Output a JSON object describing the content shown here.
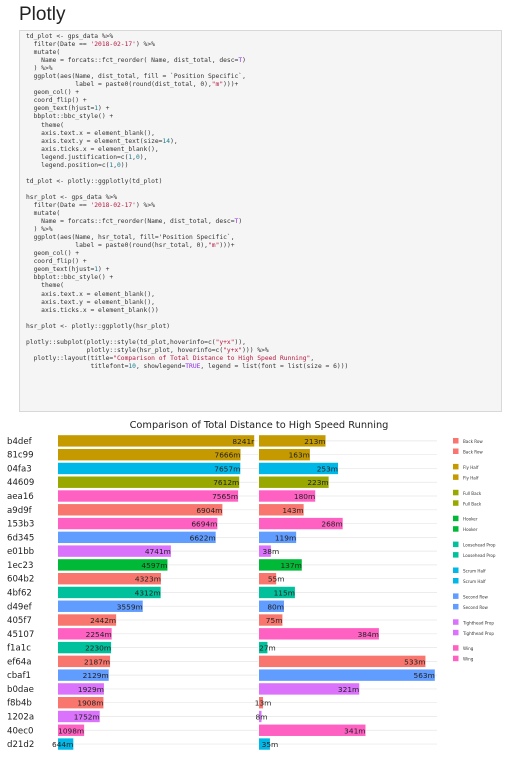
{
  "page": {
    "heading": "Plotly"
  },
  "code": {
    "lines": [
      "td_plot <- gps_data %>%",
      "  filter(Date == '2018-02-17') %>%",
      "  mutate(",
      "    Name = forcats::fct_reorder( Name, dist_total, desc=T)",
      "  ) %>%",
      "  ggplot(aes(Name, dist_total, fill = `Position Specific`,",
      "             label = paste0(round(dist_total, 0),\"m\")))+",
      "  geom_col() +",
      "  coord_flip() +",
      "  geom_text(hjust=1) +",
      "  bbplot::bbc_style() +",
      "    theme(",
      "    axis.text.x = element_blank(),",
      "    axis.text.y = element_text(size=14),",
      "    axis.ticks.x = element_blank(),",
      "    legend.justification=c(1,0),",
      "    legend.position=c(1,0))",
      "",
      "td_plot <- plotly::ggplotly(td_plot)",
      "",
      "hsr_plot <- gps_data %>%",
      "  filter(Date == '2018-02-17') %>%",
      "  mutate(",
      "    Name = forcats::fct_reorder(Name, dist_total, desc=T)",
      "  ) %>%",
      "  ggplot(aes(Name, hsr_total, fill='Position Specific`,",
      "             label = paste0(round(hsr_total, 0),\"m\")))+",
      "  geom_col() +",
      "  coord_flip() +",
      "  geom_text(hjust=1) +",
      "  bbplot::bbc_style() +",
      "    theme(",
      "    axis.text.x = element_blank(),",
      "    axis.text.y = element_blank(),",
      "    axis.ticks.x = element_blank())",
      "",
      "hsr_plot <- plotly::ggplotly(hsr_plot)",
      "",
      "plotly::subplot(plotly::style(td_plot,hoverinfo=c(\"y+x\")),",
      "                plotly::style(hsr_plot, hoverinfo=c(\"y+x\"))) %>%",
      "  plotly::layout(title=\"Comparison of Total Distance to High Speed Running\",",
      "                 titlefont=10, showlegend=TRUE, legend = list(font = list(size = 6)))"
    ]
  },
  "chart_data": {
    "type": "bar",
    "title": "Comparison of Total Distance to High Speed Running",
    "colors": {
      "Back Row": "#f8766d",
      "Fly Half": "#c49a00",
      "Full Back": "#99a800",
      "Hooker": "#00b936",
      "Loosehead Prop": "#00c19c",
      "Scrum Half": "#00b8e7",
      "Second Row": "#619cff",
      "Tighthead Prop": "#db72fb",
      "Wing": "#ff61c3"
    },
    "legend_entries": [
      "Back Row",
      "Back Row",
      "Fly Half",
      "Fly Half",
      "Full Back",
      "Full Back",
      "Hooker",
      "Hooker",
      "Loosehead Prop",
      "Loosehead Prop",
      "Scrum Half",
      "Scrum Half",
      "Second Row",
      "Second Row",
      "Tighthead Prop",
      "Tighthead Prop",
      "Wing",
      "Wing"
    ],
    "xlim_total": [
      0,
      8400
    ],
    "xlim_hsr": [
      0,
      570
    ],
    "rows": [
      {
        "name": "b4def",
        "position": "Fly Half",
        "total": 8241,
        "total_label": "8241r",
        "hsr": 213,
        "hsr_label": "213m"
      },
      {
        "name": "81c99",
        "position": "Fly Half",
        "total": 7666,
        "total_label": "7666m",
        "hsr": 163,
        "hsr_label": "163m"
      },
      {
        "name": "04fa3",
        "position": "Scrum Half",
        "total": 7657,
        "total_label": "7657m",
        "hsr": 253,
        "hsr_label": "253m"
      },
      {
        "name": "44609",
        "position": "Full Back",
        "total": 7612,
        "total_label": "7612m",
        "hsr": 223,
        "hsr_label": "223m"
      },
      {
        "name": "aea16",
        "position": "Wing",
        "total": 7565,
        "total_label": "7565m",
        "hsr": 180,
        "hsr_label": "180m"
      },
      {
        "name": "a9d9f",
        "position": "Back Row",
        "total": 6904,
        "total_label": "6904m",
        "hsr": 143,
        "hsr_label": "143m"
      },
      {
        "name": "153b3",
        "position": "Wing",
        "total": 6694,
        "total_label": "6694m",
        "hsr": 268,
        "hsr_label": "268m"
      },
      {
        "name": "6d345",
        "position": "Second Row",
        "total": 6622,
        "total_label": "6622m",
        "hsr": 119,
        "hsr_label": "119m"
      },
      {
        "name": "e01bb",
        "position": "Tighthead Prop",
        "total": 4741,
        "total_label": "4741m",
        "hsr": 38,
        "hsr_label": "38m"
      },
      {
        "name": "1ec23",
        "position": "Hooker",
        "total": 4597,
        "total_label": "4597m",
        "hsr": 137,
        "hsr_label": "137m"
      },
      {
        "name": "604b2",
        "position": "Back Row",
        "total": 4323,
        "total_label": "4323m",
        "hsr": 55,
        "hsr_label": "55m"
      },
      {
        "name": "4bf62",
        "position": "Loosehead Prop",
        "total": 4312,
        "total_label": "4312m",
        "hsr": 115,
        "hsr_label": "115m"
      },
      {
        "name": "d49ef",
        "position": "Second Row",
        "total": 3559,
        "total_label": "3559m",
        "hsr": 80,
        "hsr_label": "80m"
      },
      {
        "name": "405f7",
        "position": "Back Row",
        "total": 2442,
        "total_label": "2442m",
        "hsr": 75,
        "hsr_label": "75m"
      },
      {
        "name": "45107",
        "position": "Wing",
        "total": 2254,
        "total_label": "2254m",
        "hsr": 384,
        "hsr_label": "384m"
      },
      {
        "name": "f1a1c",
        "position": "Loosehead Prop",
        "total": 2230,
        "total_label": "2230m",
        "hsr": 27,
        "hsr_label": "27m"
      },
      {
        "name": "ef64a",
        "position": "Back Row",
        "total": 2187,
        "total_label": "2187m",
        "hsr": 533,
        "hsr_label": "533m"
      },
      {
        "name": "cbaf1",
        "position": "Second Row",
        "total": 2129,
        "total_label": "2129m",
        "hsr": 563,
        "hsr_label": "563m"
      },
      {
        "name": "b0dae",
        "position": "Tighthead Prop",
        "total": 1929,
        "total_label": "1929m",
        "hsr": 321,
        "hsr_label": "321m"
      },
      {
        "name": "f8b4b",
        "position": "Back Row",
        "total": 1908,
        "total_label": "1908m",
        "hsr": 13,
        "hsr_label": "13m"
      },
      {
        "name": "1202a",
        "position": "Tighthead Prop",
        "total": 1752,
        "total_label": "1752m",
        "hsr": 8,
        "hsr_label": "8m"
      },
      {
        "name": "40ec0",
        "position": "Wing",
        "total": 1098,
        "total_label": "1098m",
        "hsr": 341,
        "hsr_label": "341m"
      },
      {
        "name": "d21d2",
        "position": "Scrum Half",
        "total": 644,
        "total_label": "644m",
        "hsr": 35,
        "hsr_label": "35m"
      }
    ]
  }
}
